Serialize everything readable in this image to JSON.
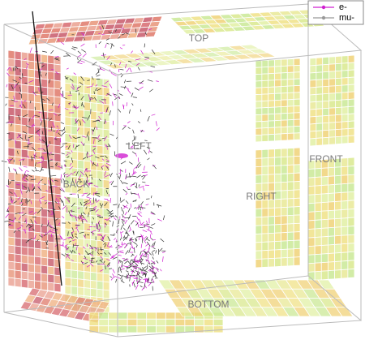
{
  "faces": {
    "top": "TOP",
    "left": "LEFT",
    "back": "BACK",
    "right": "RIGHT",
    "front": "FRONT",
    "bottom": "BOTTOM"
  },
  "legend": [
    {
      "name": "e-",
      "color": "#d020d0"
    },
    {
      "name": "mu-",
      "color": "#999999"
    }
  ]
}
